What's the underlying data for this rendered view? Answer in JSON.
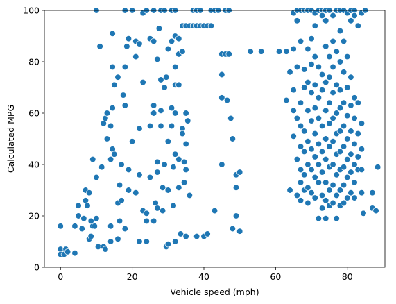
{
  "chart_data": {
    "type": "scatter",
    "title": "",
    "xlabel": "Vehicle speed (mph)",
    "ylabel": "Calculated MPG",
    "xlim": [
      -4.5,
      90.5
    ],
    "ylim": [
      0,
      100
    ],
    "x_ticks": [
      0,
      20,
      40,
      60,
      80
    ],
    "y_ticks": [
      0,
      20,
      40,
      60,
      80,
      100
    ],
    "grid": false,
    "legend": "none",
    "marker_color": "#1f77b4",
    "series": [
      {
        "points": [
          [
            0,
            16
          ],
          [
            0,
            7
          ],
          [
            0,
            5
          ],
          [
            1,
            5
          ],
          [
            1.5,
            7
          ],
          [
            2,
            6
          ],
          [
            4,
            5.5
          ],
          [
            4,
            16
          ],
          [
            5,
            20
          ],
          [
            5,
            24
          ],
          [
            6,
            15
          ],
          [
            6.5,
            19
          ],
          [
            7,
            26
          ],
          [
            7,
            30
          ],
          [
            7.5,
            24
          ],
          [
            8,
            29
          ],
          [
            8,
            11
          ],
          [
            8.5,
            18
          ],
          [
            8.5,
            12
          ],
          [
            9,
            16
          ],
          [
            9.5,
            16
          ],
          [
            9,
            42
          ],
          [
            10,
            35
          ],
          [
            10,
            19
          ],
          [
            10.5,
            8
          ],
          [
            10,
            100
          ],
          [
            11.5,
            39
          ],
          [
            11,
            86
          ],
          [
            12,
            8
          ],
          [
            12.5,
            7
          ],
          [
            12,
            56
          ],
          [
            12.5,
            58
          ],
          [
            13,
            60
          ],
          [
            13,
            50
          ],
          [
            14,
            16
          ],
          [
            14,
            10
          ],
          [
            14,
            42
          ],
          [
            14,
            55
          ],
          [
            14.5,
            62
          ],
          [
            14.5,
            46
          ],
          [
            14.5,
            78
          ],
          [
            14.5,
            91
          ],
          [
            15,
            44
          ],
          [
            15,
            71
          ],
          [
            16,
            74
          ],
          [
            16,
            25
          ],
          [
            16,
            11
          ],
          [
            16.5,
            18
          ],
          [
            16.5,
            32
          ],
          [
            17,
            40
          ],
          [
            17,
            26
          ],
          [
            17.5,
            67
          ],
          [
            18,
            63
          ],
          [
            18,
            78
          ],
          [
            18,
            15
          ],
          [
            18,
            100
          ],
          [
            18.5,
            86
          ],
          [
            19,
            38
          ],
          [
            19,
            89
          ],
          [
            19,
            30
          ],
          [
            20,
            49
          ],
          [
            20,
            100
          ],
          [
            21,
            82
          ],
          [
            21,
            88
          ],
          [
            21,
            29
          ],
          [
            22,
            87
          ],
          [
            22,
            36
          ],
          [
            22,
            54
          ],
          [
            22,
            10
          ],
          [
            23,
            72
          ],
          [
            23,
            22
          ],
          [
            23,
            99
          ],
          [
            24,
            100
          ],
          [
            24,
            21
          ],
          [
            24,
            18
          ],
          [
            24,
            10
          ],
          [
            25,
            35
          ],
          [
            25,
            55
          ],
          [
            25,
            89
          ],
          [
            26,
            63
          ],
          [
            26,
            18
          ],
          [
            26,
            60
          ],
          [
            26,
            88
          ],
          [
            26,
            100
          ],
          [
            26.5,
            25
          ],
          [
            27,
            41
          ],
          [
            27,
            23
          ],
          [
            27,
            37
          ],
          [
            27,
            81
          ],
          [
            27.5,
            93
          ],
          [
            28,
            61
          ],
          [
            28,
            73
          ],
          [
            28,
            100
          ],
          [
            28,
            55
          ],
          [
            28.5,
            31
          ],
          [
            28.5,
            22
          ],
          [
            29,
            40
          ],
          [
            29,
            70
          ],
          [
            29,
            100
          ],
          [
            29.5,
            74
          ],
          [
            29.5,
            8
          ],
          [
            30,
            9
          ],
          [
            30,
            85
          ],
          [
            30,
            30
          ],
          [
            30,
            49
          ],
          [
            31,
            62
          ],
          [
            31,
            88
          ],
          [
            31,
            100
          ],
          [
            31,
            55
          ],
          [
            31.5,
            39
          ],
          [
            31.5,
            24
          ],
          [
            32,
            10
          ],
          [
            32,
            60
          ],
          [
            32,
            71
          ],
          [
            32,
            78
          ],
          [
            32,
            44
          ],
          [
            32,
            90
          ],
          [
            32,
            100
          ],
          [
            33,
            89
          ],
          [
            33,
            83
          ],
          [
            33,
            31
          ],
          [
            33,
            42
          ],
          [
            33,
            71
          ],
          [
            33.5,
            13
          ],
          [
            34,
            84
          ],
          [
            34,
            54
          ],
          [
            34,
            52
          ],
          [
            34,
            94
          ],
          [
            34.5,
            33
          ],
          [
            34.5,
            41
          ],
          [
            35,
            48
          ],
          [
            35,
            38
          ],
          [
            35,
            12
          ],
          [
            35,
            60
          ],
          [
            35,
            94
          ],
          [
            35.5,
            57
          ],
          [
            36,
            94
          ],
          [
            36,
            28
          ],
          [
            37,
            94
          ],
          [
            37,
            100
          ],
          [
            38,
            12
          ],
          [
            38,
            100
          ],
          [
            38,
            94
          ],
          [
            39,
            94
          ],
          [
            39,
            100
          ],
          [
            40,
            94
          ],
          [
            40,
            12
          ],
          [
            41,
            13
          ],
          [
            41,
            94
          ],
          [
            42,
            94
          ],
          [
            42,
            100
          ],
          [
            43,
            100
          ],
          [
            43,
            22
          ],
          [
            44,
            100
          ],
          [
            45,
            75
          ],
          [
            45,
            66
          ],
          [
            45,
            40
          ],
          [
            45,
            83
          ],
          [
            46,
            83
          ],
          [
            46,
            100
          ],
          [
            46.5,
            65
          ],
          [
            47,
            100
          ],
          [
            47,
            83
          ],
          [
            47.5,
            58
          ],
          [
            48,
            50
          ],
          [
            48,
            15
          ],
          [
            49,
            31
          ],
          [
            49,
            20
          ],
          [
            49,
            36
          ],
          [
            50,
            37
          ],
          [
            50,
            14
          ],
          [
            53,
            84
          ],
          [
            56,
            84
          ],
          [
            61,
            84
          ],
          [
            63,
            84
          ],
          [
            63,
            65
          ],
          [
            64,
            76
          ],
          [
            64,
            30
          ],
          [
            65,
            99
          ],
          [
            65,
            85
          ],
          [
            65,
            69
          ],
          [
            65,
            61
          ],
          [
            65,
            51
          ],
          [
            66,
            100
          ],
          [
            66,
            96
          ],
          [
            66,
            78
          ],
          [
            66,
            58
          ],
          [
            66,
            42
          ],
          [
            66,
            28
          ],
          [
            67,
            100
          ],
          [
            67,
            88
          ],
          [
            67,
            64
          ],
          [
            67,
            55
          ],
          [
            67,
            47
          ],
          [
            67,
            38
          ],
          [
            67,
            33
          ],
          [
            67,
            26
          ],
          [
            68,
            100
          ],
          [
            68,
            77
          ],
          [
            68,
            70
          ],
          [
            68,
            53
          ],
          [
            68,
            45
          ],
          [
            68,
            36
          ],
          [
            68,
            30
          ],
          [
            69,
            100
          ],
          [
            69,
            85
          ],
          [
            69,
            72
          ],
          [
            69,
            61
          ],
          [
            69,
            49
          ],
          [
            69,
            40
          ],
          [
            69,
            31
          ],
          [
            69,
            25
          ],
          [
            70,
            100
          ],
          [
            70,
            89
          ],
          [
            70,
            79
          ],
          [
            70,
            68
          ],
          [
            70,
            57
          ],
          [
            70,
            46
          ],
          [
            70,
            38
          ],
          [
            70,
            29
          ],
          [
            71,
            99
          ],
          [
            71,
            94
          ],
          [
            71,
            82
          ],
          [
            71,
            71
          ],
          [
            71,
            62
          ],
          [
            71,
            52
          ],
          [
            71,
            43
          ],
          [
            71,
            35
          ],
          [
            71,
            27
          ],
          [
            72,
            100
          ],
          [
            72,
            78
          ],
          [
            72,
            66
          ],
          [
            72,
            58
          ],
          [
            72,
            48
          ],
          [
            72,
            40
          ],
          [
            72,
            33
          ],
          [
            72,
            19
          ],
          [
            73,
            100
          ],
          [
            73,
            98
          ],
          [
            73,
            75
          ],
          [
            73,
            69
          ],
          [
            73,
            55
          ],
          [
            73,
            45
          ],
          [
            73,
            37
          ],
          [
            73,
            28
          ],
          [
            73,
            23
          ],
          [
            74,
            100
          ],
          [
            74,
            96
          ],
          [
            74,
            86
          ],
          [
            74,
            72
          ],
          [
            74,
            61
          ],
          [
            74,
            50
          ],
          [
            74,
            42
          ],
          [
            74,
            33
          ],
          [
            74,
            26
          ],
          [
            74,
            19
          ],
          [
            75,
            100
          ],
          [
            75,
            82
          ],
          [
            75,
            74
          ],
          [
            75,
            64
          ],
          [
            75,
            56
          ],
          [
            75,
            47
          ],
          [
            75,
            39
          ],
          [
            75,
            30
          ],
          [
            75,
            24
          ],
          [
            76,
            98
          ],
          [
            76,
            88
          ],
          [
            76,
            78
          ],
          [
            76,
            68
          ],
          [
            76,
            58
          ],
          [
            76,
            49
          ],
          [
            76,
            40
          ],
          [
            76,
            32
          ],
          [
            76,
            25
          ],
          [
            77,
            100
          ],
          [
            77,
            84
          ],
          [
            77,
            71
          ],
          [
            77,
            60
          ],
          [
            77,
            52
          ],
          [
            77,
            44
          ],
          [
            77,
            36
          ],
          [
            77,
            28
          ],
          [
            77,
            19
          ],
          [
            78,
            100
          ],
          [
            78,
            92
          ],
          [
            78,
            80
          ],
          [
            78,
            69
          ],
          [
            78,
            62
          ],
          [
            78,
            53
          ],
          [
            78,
            45
          ],
          [
            78,
            38
          ],
          [
            78,
            30
          ],
          [
            78,
            24
          ],
          [
            79,
            100
          ],
          [
            79,
            88
          ],
          [
            79,
            76
          ],
          [
            79,
            64
          ],
          [
            79,
            55
          ],
          [
            79,
            47
          ],
          [
            79,
            39
          ],
          [
            79,
            32
          ],
          [
            79,
            25
          ],
          [
            80,
            99
          ],
          [
            80,
            82
          ],
          [
            80,
            70
          ],
          [
            80,
            59
          ],
          [
            80,
            50
          ],
          [
            80,
            42
          ],
          [
            80,
            35
          ],
          [
            80,
            27
          ],
          [
            81,
            100
          ],
          [
            81,
            96
          ],
          [
            81,
            74
          ],
          [
            81,
            63
          ],
          [
            81,
            53
          ],
          [
            81,
            44
          ],
          [
            81,
            37
          ],
          [
            81,
            29
          ],
          [
            82,
            100
          ],
          [
            82,
            98
          ],
          [
            82,
            66
          ],
          [
            82,
            58
          ],
          [
            82,
            48
          ],
          [
            82,
            40
          ],
          [
            82,
            33
          ],
          [
            82,
            27
          ],
          [
            83,
            94
          ],
          [
            83,
            64
          ],
          [
            83,
            52
          ],
          [
            83,
            43
          ],
          [
            83,
            38
          ],
          [
            84,
            99
          ],
          [
            84,
            56
          ],
          [
            84,
            46
          ],
          [
            84,
            38
          ],
          [
            84,
            29
          ],
          [
            84.5,
            21
          ],
          [
            85,
            100
          ],
          [
            87,
            29
          ],
          [
            87,
            23
          ],
          [
            88,
            22
          ],
          [
            88.5,
            39
          ]
        ]
      }
    ]
  }
}
